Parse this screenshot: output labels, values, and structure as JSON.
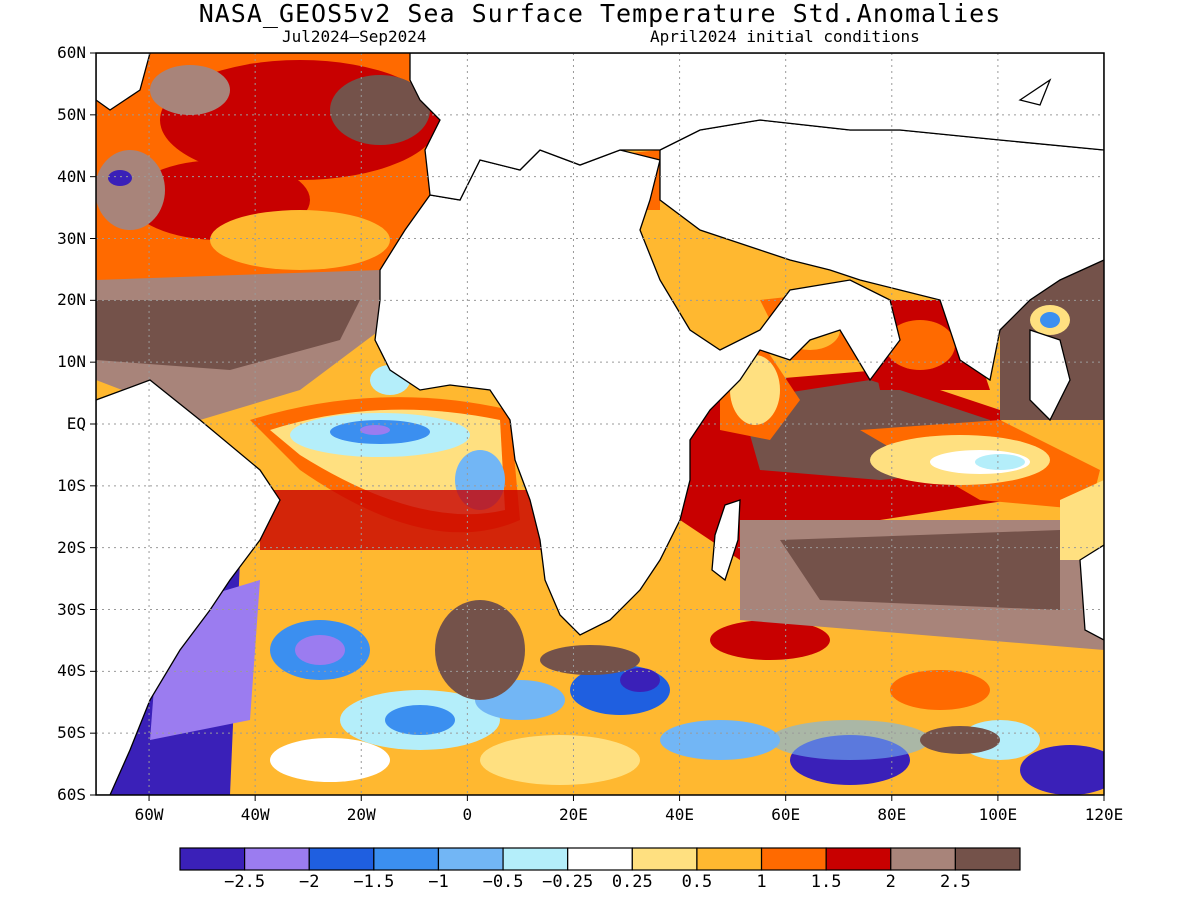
{
  "title": "NASA_GEOS5v2 Sea Surface Temperature Std.Anomalies",
  "subtitle_left": "Jul2024—Sep2024",
  "subtitle_right": "April2024 initial conditions",
  "lat_labels": [
    "60N",
    "50N",
    "40N",
    "30N",
    "20N",
    "10N",
    "EQ",
    "10S",
    "20S",
    "30S",
    "40S",
    "50S",
    "60S"
  ],
  "lon_labels": [
    "60W",
    "40W",
    "20W",
    "0",
    "20E",
    "40E",
    "60E",
    "80E",
    "100E",
    "120E"
  ],
  "colorbar": {
    "colors": [
      "#3a20b8",
      "#9b7cf0",
      "#1f5fe0",
      "#3b8ff0",
      "#72b6f5",
      "#b4eefa",
      "#ffffff",
      "#ffe080",
      "#ffb830",
      "#ff6a00",
      "#c80000",
      "#a8847a",
      "#74524a"
    ],
    "labels": [
      "−2.5",
      "−2",
      "−1.5",
      "−1",
      "−0.5",
      "−0.25",
      "0.25",
      "0.5",
      "1",
      "1.5",
      "2",
      "2.5"
    ]
  },
  "map_data": {
    "projection": "equirectangular",
    "lon_range": [
      -70,
      120
    ],
    "lat_range": [
      -60,
      60
    ],
    "variable": "Sea Surface Temperature Std.Anomalies",
    "land_color": "#ffffff"
  }
}
